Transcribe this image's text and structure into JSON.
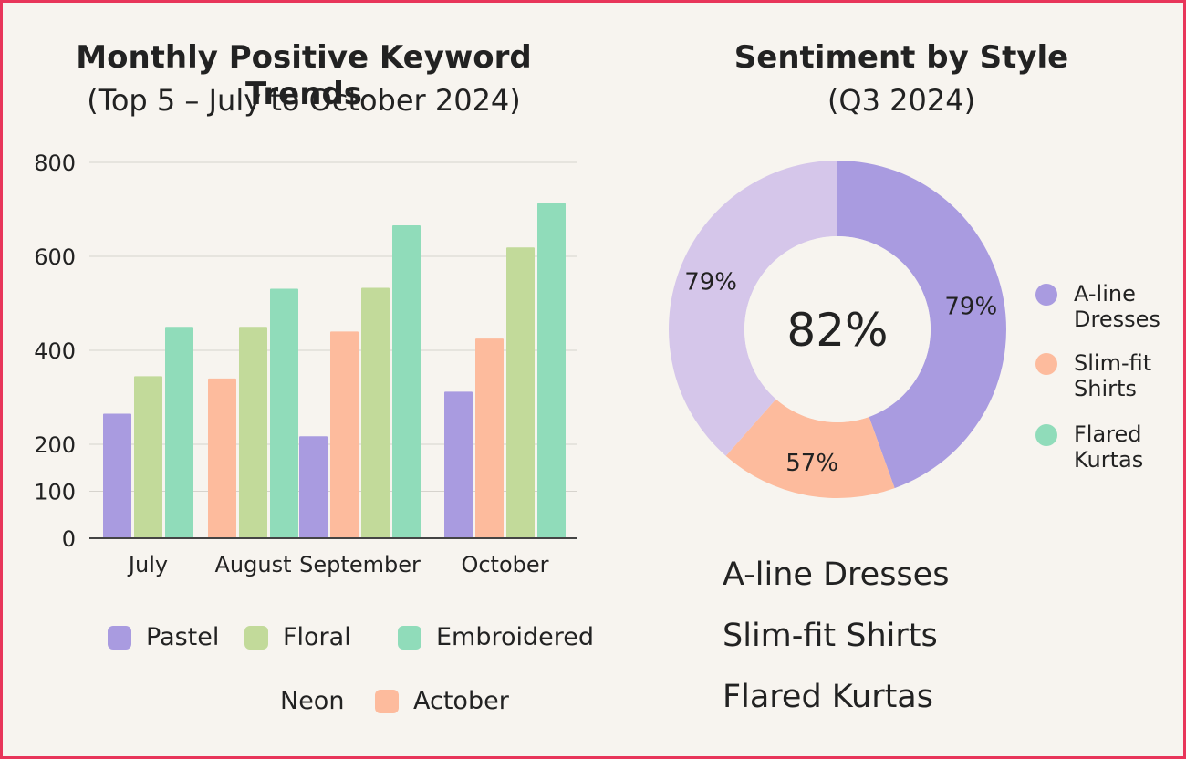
{
  "colors": {
    "pastel": "#a99be0",
    "floral": "#c2da9a",
    "embroidered": "#90dcba",
    "actober": "#fdbb9d",
    "donut_purple_dark": "#a99be0",
    "donut_purple_light": "#d5c6ea",
    "donut_peach": "#fdbb9d",
    "frame": "#e8355a"
  },
  "chart_data": [
    {
      "type": "bar",
      "title": "Monthly Positive Keyword Trends",
      "subtitle": "(Top 5 – July to October 2024)",
      "categories": [
        "July",
        "August",
        "September",
        "October"
      ],
      "ylim": [
        0,
        800
      ],
      "yticks": [
        0,
        100,
        200,
        400,
        600,
        800
      ],
      "series": [
        {
          "name": "Pastel",
          "color": "#a99be0",
          "values": [
            265,
            null,
            217,
            312
          ]
        },
        {
          "name": "Actober",
          "color": "#fdbb9d",
          "values": [
            null,
            340,
            440,
            425
          ]
        },
        {
          "name": "Floral",
          "color": "#c2da9a",
          "values": [
            345,
            450,
            533,
            619
          ]
        },
        {
          "name": "Embroidered",
          "color": "#90dcba",
          "values": [
            450,
            531,
            666,
            713
          ]
        }
      ],
      "legend": [
        {
          "label": "Pastel",
          "color": "#a99be0"
        },
        {
          "label": "Floral",
          "color": "#c2da9a"
        },
        {
          "label": "Embroidered",
          "color": "#90dcba"
        },
        {
          "label": "Neon",
          "color": null
        },
        {
          "label": "Actober",
          "color": "#fdbb9d"
        }
      ],
      "grid": true,
      "legend_position": "bottom"
    },
    {
      "type": "pie",
      "title": "Sentiment by Style",
      "subtitle": "(Q3 2024)",
      "center_label": "82%",
      "slices": [
        {
          "label": "79%",
          "share": 0.445,
          "color": "#a99be0"
        },
        {
          "label": "57%",
          "share": 0.17,
          "color": "#fdbb9d"
        },
        {
          "label": "79%",
          "share": 0.385,
          "color": "#d5c6ea"
        }
      ],
      "legend": [
        {
          "label": "A-line Dresses",
          "color": "#a99be0"
        },
        {
          "label": "Slim-fit Shirts",
          "color": "#fdbb9d"
        },
        {
          "label": "Flared Kurtas",
          "color": "#90dcba"
        }
      ],
      "legend_position": "right"
    }
  ],
  "style_names": [
    "A-line Dresses",
    "Slim-fit Shirts",
    "Flared Kurtas"
  ],
  "legend_right_lines": [
    [
      "A-line",
      "Dresses"
    ],
    [
      "Slim-fit",
      "Shirts"
    ],
    [
      "Flared",
      "Kurtas"
    ]
  ]
}
